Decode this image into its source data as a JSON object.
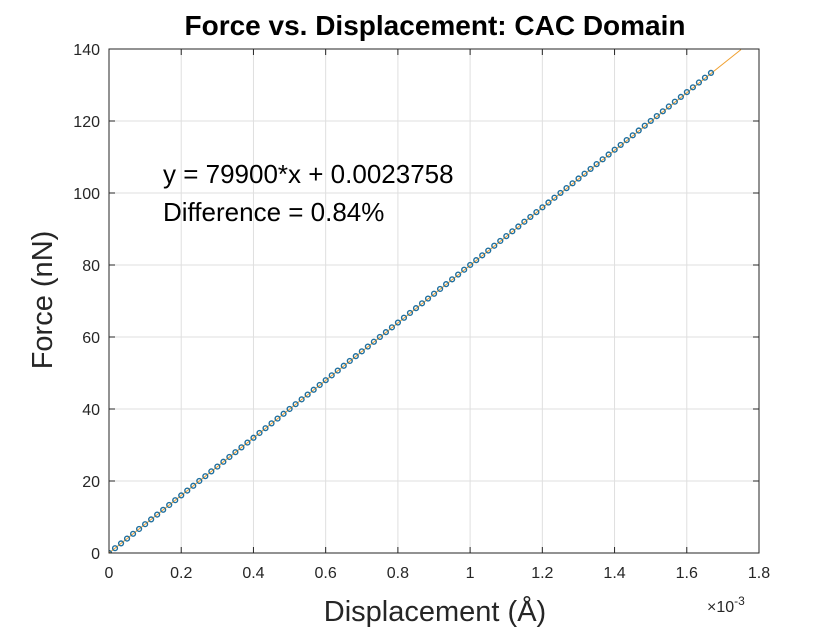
{
  "chart_data": {
    "type": "scatter",
    "title": "Force vs. Displacement: CAC Domain",
    "xlabel": "Displacement (Å)",
    "ylabel": "Force (nN)",
    "x_exponent_label": "×10",
    "x_exponent_power": "-3",
    "xlim": [
      0,
      0.0018
    ],
    "ylim": [
      0,
      140
    ],
    "x_ticks": [
      0,
      0.0002,
      0.0004,
      0.0006,
      0.0008,
      0.001,
      0.0012,
      0.0014,
      0.0016,
      0.0018
    ],
    "x_tick_labels": [
      "0",
      "0.2",
      "0.4",
      "0.6",
      "0.8",
      "1",
      "1.2",
      "1.4",
      "1.6",
      "1.8"
    ],
    "y_ticks": [
      0,
      20,
      40,
      60,
      80,
      100,
      120,
      140
    ],
    "y_tick_labels": [
      "0",
      "20",
      "40",
      "60",
      "80",
      "100",
      "120",
      "140"
    ],
    "grid": true,
    "annotations": [
      "y = 79900*x + 0.0023758",
      "Difference = 0.84%"
    ],
    "series": [
      {
        "kind": "points",
        "color": "#1f6f9f",
        "x_start": 0,
        "x_end": 0.001667,
        "x_step": 1.667e-05,
        "slope": 80000,
        "intercept": 0
      },
      {
        "kind": "fit-line",
        "color": "#f0a030",
        "slope": 79900,
        "intercept": 0.0023758,
        "x_start": 0,
        "x_end": 0.00175
      }
    ]
  }
}
